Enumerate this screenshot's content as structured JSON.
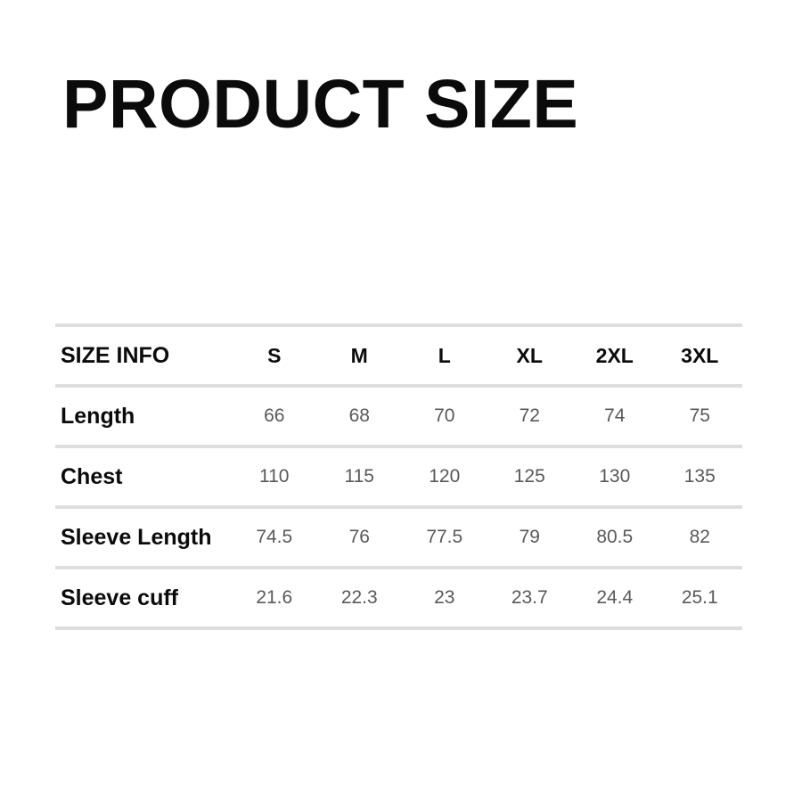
{
  "page": {
    "title": "PRODUCT SIZE",
    "background_color": "#ffffff",
    "title_color": "#0b0b0b",
    "value_text_color": "#58595b",
    "divider_color": "#dedede"
  },
  "chart_data": {
    "type": "table",
    "title": "PRODUCT SIZE",
    "columns": [
      "SIZE INFO",
      "S",
      "M",
      "L",
      "XL",
      "2XL",
      "3XL"
    ],
    "rows": [
      [
        "Length",
        "66",
        "68",
        "70",
        "72",
        "74",
        "75"
      ],
      [
        "Chest",
        "110",
        "115",
        "120",
        "125",
        "130",
        "135"
      ],
      [
        "Sleeve Length",
        "74.5",
        "76",
        "77.5",
        "79",
        "80.5",
        "82"
      ],
      [
        "Sleeve cuff",
        "21.6",
        "22.3",
        "23",
        "23.7",
        "24.4",
        "25.1"
      ]
    ]
  }
}
